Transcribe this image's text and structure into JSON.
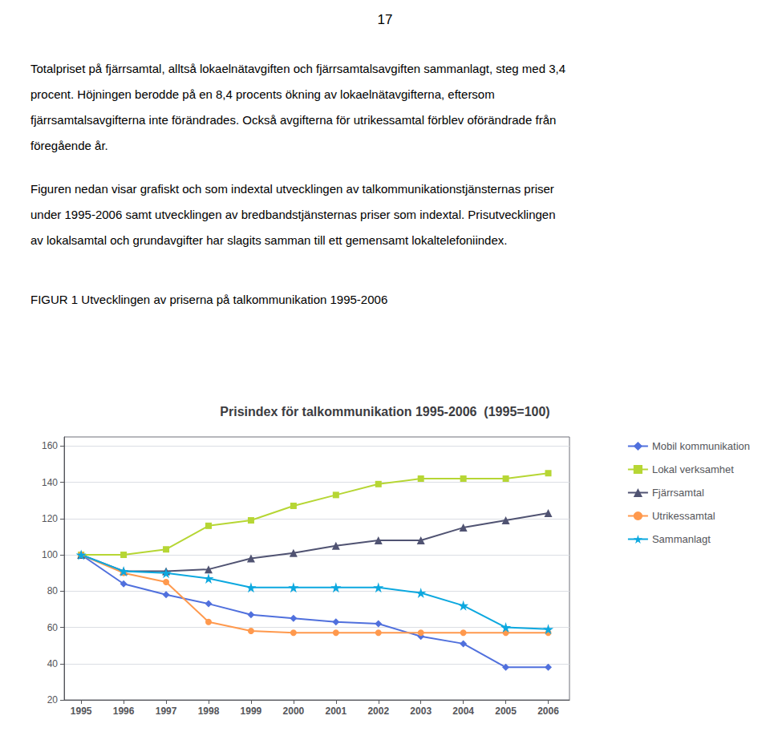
{
  "chart_data": {
    "type": "line",
    "title": "Prisindex för talkommunikation 1995-2006  (1995=100)",
    "annotations": [
      [
        "17"
      ],
      [
        "Totalpriset på fjärrsamtal, alltså lokaelnätavgiften och fjärrsamtalsavgiften sammanlagt, steg med 3,4",
        "procent. Höjningen berodde på en 8,4 procents ökning av lokaelnätavgifterna, eftersom",
        "fjärrsamtalsavgifterna inte förändrades. Också avgifterna för utrikessamtal förblev oförändrade från",
        "föregående år."
      ],
      [
        "Figuren nedan visar grafiskt och som indextal utvecklingen av talkommunikationstjänsternas priser",
        "under 1995-2006 samt utvecklingen av bredbandstjänsternas priser som indextal. Prisutvecklingen",
        "av lokalsamtal och grundavgifter har slagits samman till ett gemensamt lokaltelefoniindex."
      ],
      [
        "FIGUR 1 Utvecklingen av priserna på talkommunikation 1995-2006"
      ]
    ],
    "x": [
      1995,
      1996,
      1997,
      1998,
      1999,
      2000,
      2001,
      2002,
      2003,
      2004,
      2005,
      2006
    ],
    "xlim": [
      1994.6,
      2006.5
    ],
    "xticks": [
      1995,
      1996,
      1997,
      1998,
      1999,
      2000,
      2001,
      2002,
      2003,
      2004,
      2005,
      2006
    ],
    "ylim": [
      20,
      165
    ],
    "yticks": [
      20,
      40,
      60,
      80,
      100,
      120,
      140,
      160
    ],
    "grid": true,
    "legend": "right",
    "series": [
      {
        "name": "Mobil kommunikation",
        "marker": "diamond",
        "values": [
          100,
          84,
          78,
          73,
          67,
          65,
          63,
          62,
          55,
          51,
          38,
          38
        ]
      },
      {
        "name": "Lokal verksamhet",
        "marker": "square",
        "values": [
          100,
          100,
          103,
          116,
          119,
          127,
          133,
          139,
          142,
          142,
          142,
          145
        ]
      },
      {
        "name": "Fjärrsamtal",
        "marker": "triangle",
        "values": [
          100,
          91,
          91,
          92,
          98,
          101,
          105,
          108,
          108,
          115,
          119,
          123
        ]
      },
      {
        "name": "Utrikessamtal",
        "marker": "circle",
        "values": [
          100,
          90,
          85,
          63,
          58,
          57,
          57,
          57,
          57,
          57,
          57,
          57
        ]
      },
      {
        "name": "Sammanlagt",
        "marker": "star",
        "values": [
          100,
          91,
          90,
          87,
          82,
          82,
          82,
          82,
          79,
          72,
          60,
          59
        ]
      }
    ]
  }
}
